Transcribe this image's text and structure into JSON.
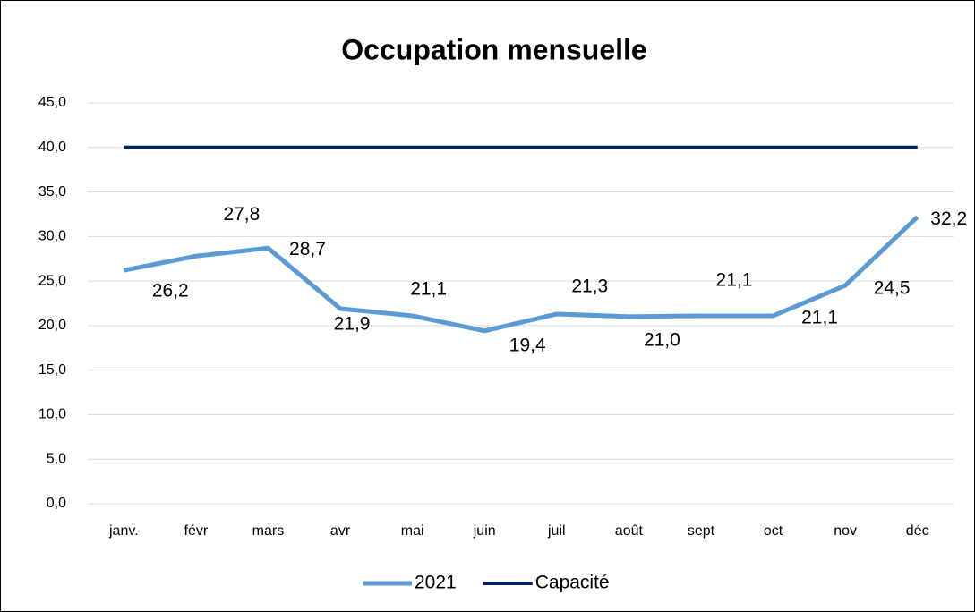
{
  "chart_data": {
    "type": "line",
    "title": "Occupation mensuelle",
    "categories": [
      "janv.",
      "févr",
      "mars",
      "avr",
      "mai",
      "juin",
      "juil",
      "août",
      "sept",
      "oct",
      "nov",
      "déc"
    ],
    "series": [
      {
        "name": "2021",
        "color": "#5b9bd5",
        "values": [
          26.2,
          27.8,
          28.7,
          21.9,
          21.1,
          19.4,
          21.3,
          21.0,
          21.1,
          21.1,
          24.5,
          32.2
        ],
        "value_labels": [
          "26,2",
          "27,8",
          "28,7",
          "21,9",
          "21,1",
          "19,4",
          "21,3",
          "21,0",
          "21,1",
          "21,1",
          "24,5",
          "32,2"
        ]
      },
      {
        "name": "Capacité",
        "color": "#002060",
        "values": [
          40,
          40,
          40,
          40,
          40,
          40,
          40,
          40,
          40,
          40,
          40,
          40
        ]
      }
    ],
    "ylim": [
      0,
      45
    ],
    "yticks": [
      {
        "value": 0,
        "label": "0,0"
      },
      {
        "value": 5,
        "label": "5,0"
      },
      {
        "value": 10,
        "label": "10,0"
      },
      {
        "value": 15,
        "label": "15,0"
      },
      {
        "value": 20,
        "label": "20,0"
      },
      {
        "value": 25,
        "label": "25,0"
      },
      {
        "value": 30,
        "label": "30,0"
      },
      {
        "value": 35,
        "label": "35,0"
      },
      {
        "value": 40,
        "label": "40,0"
      },
      {
        "value": 45,
        "label": "45,0"
      }
    ],
    "grid": true,
    "legend": "bottom"
  }
}
